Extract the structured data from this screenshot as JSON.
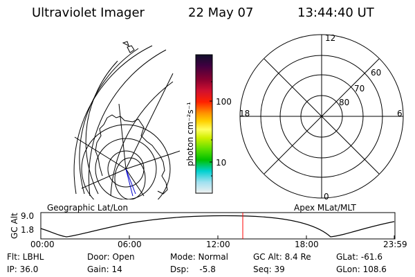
{
  "header": {
    "title": "Ultraviolet Imager",
    "date": "22 May 07",
    "time": "13:44:40 UT"
  },
  "colorbar": {
    "unit": "photon cm⁻²s⁻¹",
    "tick_100": "100",
    "tick_10": "10"
  },
  "polar": {
    "mlt_top": "12",
    "mlt_left": "18",
    "mlt_right": "6",
    "mlt_bottom": "0",
    "lat_60": "60",
    "lat_70": "70",
    "lat_80": "80"
  },
  "labels": {
    "geo": "Geographic Lat/Lon",
    "apex": "Apex MLat/MLT"
  },
  "altitude_plot": {
    "y_label": "GC Alt",
    "y_max": "9.0",
    "y_min": "1.8",
    "x_ticks": [
      "00:00",
      "06:00",
      "12:00",
      "18:00",
      "23:59"
    ],
    "marker_color": "#ff0000"
  },
  "status": {
    "filter": "Flt: LBHL",
    "ip": "IP: 36.0",
    "door": "Door: Open",
    "gain": "Gain: 14",
    "mode": "Mode: Normal",
    "dsp": "Dsp:    -5.8",
    "gc_alt": "GC Alt: 8.4 Re",
    "seq": "Seq: 39",
    "glat": "GLat: -61.6",
    "glon": "GLon: 108.6"
  },
  "colors": {
    "foreground": "#000000",
    "background": "#ffffff",
    "track_line": "#0000cc"
  }
}
